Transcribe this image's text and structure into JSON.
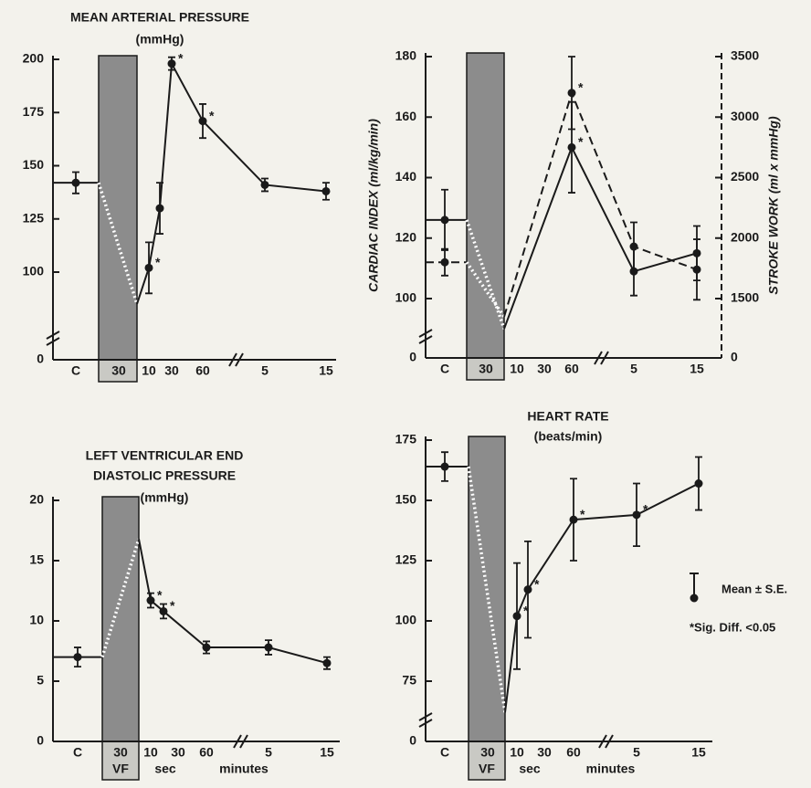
{
  "chart_data": [
    {
      "type": "line",
      "title": [
        "MEAN ARTERIAL PRESSURE",
        "(mmHg)"
      ],
      "categories": [
        "C",
        "30",
        "10",
        null,
        "30",
        "60",
        "5",
        "15"
      ],
      "ylim": [
        0,
        200
      ],
      "yticks": [
        0,
        100,
        125,
        150,
        175,
        200
      ],
      "y_break": true,
      "series": [
        {
          "color": "#1a1a1a",
          "line_style": "solid",
          "vf_value": 85,
          "values": [
            142,
            null,
            102,
            130,
            198,
            171,
            141,
            138
          ],
          "errors": [
            5,
            null,
            12,
            12,
            3,
            8,
            3,
            4
          ],
          "significant": [
            false,
            false,
            true,
            false,
            true,
            true,
            false,
            false
          ]
        }
      ]
    },
    {
      "type": "line",
      "ylabel": "CARDIAC INDEX (ml/kg/min)",
      "y2label": "STROKE WORK (ml x mmHg)",
      "categories": [
        "C",
        "30",
        "10",
        null,
        "30",
        "60",
        "5",
        "15"
      ],
      "ylim": [
        0,
        180
      ],
      "yticks": [
        0,
        100,
        120,
        140,
        160,
        180
      ],
      "y2lim": [
        0,
        3500
      ],
      "y2ticks": [
        0,
        1500,
        2000,
        2500,
        3000,
        3500
      ],
      "y_break": true,
      "series": [
        {
          "color": "#1a1a1a",
          "line_style": "solid",
          "vf_value": 90,
          "values": [
            126,
            null,
            null,
            null,
            null,
            150,
            109,
            115
          ],
          "errors": [
            10,
            null,
            null,
            null,
            null,
            15,
            8,
            9
          ],
          "significant": [
            false,
            false,
            false,
            false,
            false,
            true,
            false,
            false
          ]
        },
        {
          "color": "#1a1a1a",
          "line_style": "dashed",
          "axis": "y2",
          "vf_value": 1350,
          "values": [
            1800,
            null,
            null,
            null,
            null,
            3200,
            1930,
            1740
          ],
          "errors": [
            110,
            null,
            null,
            null,
            null,
            300,
            200,
            250
          ],
          "significant": [
            false,
            false,
            false,
            false,
            false,
            true,
            false,
            false
          ]
        }
      ]
    },
    {
      "type": "line",
      "title": [
        "LEFT VENTRICULAR END",
        "DIASTOLIC PRESSURE",
        "(mmHg)"
      ],
      "categories": [
        "C",
        "30",
        "10",
        null,
        "30",
        "60",
        "5",
        "15"
      ],
      "x_group_labels": [
        "VF",
        "sec",
        "minutes"
      ],
      "ylim": [
        0,
        20
      ],
      "yticks": [
        0,
        5,
        10,
        15,
        20
      ],
      "y_break": false,
      "series": [
        {
          "color": "#1a1a1a",
          "line_style": "solid",
          "vf_value": 16.8,
          "values": [
            7,
            null,
            11.7,
            10.8,
            null,
            7.8,
            7.8,
            6.5
          ],
          "errors": [
            0.8,
            null,
            0.6,
            0.6,
            null,
            0.5,
            0.6,
            0.5
          ],
          "significant": [
            false,
            false,
            true,
            true,
            false,
            false,
            false,
            false
          ]
        }
      ]
    },
    {
      "type": "line",
      "title": [
        "HEART RATE",
        "(beats/min)"
      ],
      "categories": [
        "C",
        "30",
        "10",
        null,
        "30",
        "60",
        "5",
        "15"
      ],
      "x_group_labels": [
        "VF",
        "sec",
        "minutes"
      ],
      "ylim": [
        0,
        175
      ],
      "yticks": [
        0,
        75,
        100,
        125,
        150,
        175
      ],
      "y_break": true,
      "series": [
        {
          "color": "#1a1a1a",
          "line_style": "solid",
          "vf_value": 62,
          "values": [
            164,
            null,
            102,
            113,
            null,
            142,
            144,
            157
          ],
          "errors": [
            6,
            null,
            22,
            20,
            null,
            17,
            13,
            11
          ],
          "significant": [
            false,
            false,
            true,
            true,
            false,
            true,
            true,
            false
          ]
        }
      ]
    }
  ],
  "legend": {
    "error_label": "Mean ± S.E.",
    "sig_label": "*Sig. Diff. <0.05",
    "sig_mark": "*"
  }
}
